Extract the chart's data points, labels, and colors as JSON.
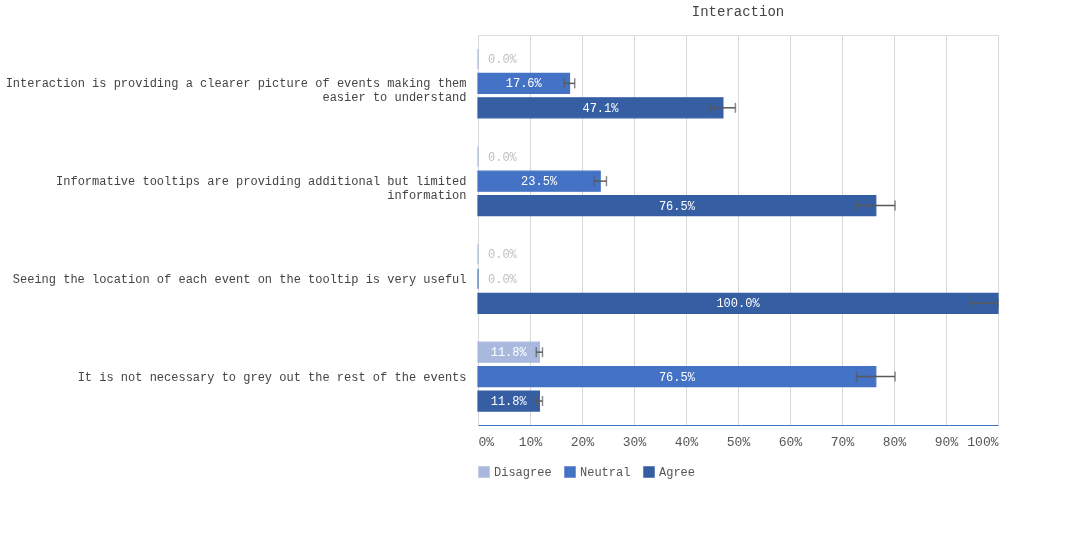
{
  "chart_data": {
    "type": "bar",
    "orientation": "horizontal",
    "title": "Interaction",
    "categories": [
      "Interaction is providing a clearer picture of events making them easier to understand",
      "Informative tooltips are providing additional but limited information",
      "Seeing the location of each event on the tooltip is very useful",
      "It is not necessary to grey out the rest of the events"
    ],
    "series": [
      {
        "name": "Disagree",
        "color": "#a9b9de",
        "values": [
          0,
          0,
          0,
          11.8
        ],
        "value_labels": [
          "0.0%",
          "0.0%",
          "0.0%",
          "11.8%"
        ],
        "errors": [
          null,
          null,
          null,
          0.6
        ]
      },
      {
        "name": "Neutral",
        "color": "#4472c4",
        "values": [
          17.6,
          23.5,
          0,
          76.5
        ],
        "value_labels": [
          "17.6%",
          "23.5%",
          "0.0%",
          "76.5%"
        ],
        "errors": [
          1.0,
          1.2,
          null,
          3.7
        ]
      },
      {
        "name": "Agree",
        "color": "#355ea3",
        "values": [
          47.1,
          76.5,
          100,
          11.8
        ],
        "value_labels": [
          "47.1%",
          "76.5%",
          "100.0%",
          "11.8%"
        ],
        "errors": [
          2.4,
          3.7,
          [
            94.6,
            100
          ],
          0.6
        ]
      }
    ],
    "xlim": [
      0,
      100
    ],
    "xticks": [
      {
        "value": 0,
        "label": "0%"
      },
      {
        "value": 10,
        "label": "10%"
      },
      {
        "value": 20,
        "label": "20%"
      },
      {
        "value": 30,
        "label": "30%"
      },
      {
        "value": 40,
        "label": "40%"
      },
      {
        "value": 50,
        "label": "50%"
      },
      {
        "value": 60,
        "label": "60%"
      },
      {
        "value": 70,
        "label": "70%"
      },
      {
        "value": 80,
        "label": "80%"
      },
      {
        "value": 90,
        "label": "90%"
      },
      {
        "value": 100,
        "label": "100%"
      }
    ],
    "grid": "x",
    "legend": "bottom"
  }
}
